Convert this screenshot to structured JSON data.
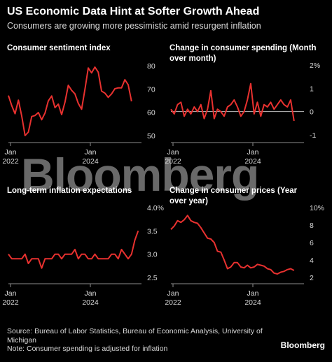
{
  "title": "US Economic Data Hint at Softer Growth Ahead",
  "subtitle": "Consumers are growing more pessimistic amid resurgent inflation",
  "watermark": "Bloomberg",
  "footer": {
    "source": "Source: Bureau of Labor Statistics, Bureau of Economic Analysis, University of Michigan",
    "note": "Note: Consumer spending is adjusted for inflation",
    "brand": "Bloomberg"
  },
  "colors": {
    "line": "#e8312f",
    "axis": "#8c8c8c",
    "background": "#000000",
    "text": "#ffffff"
  },
  "chart_data": [
    {
      "type": "line",
      "title": "Consumer sentiment index",
      "x_labels": [
        {
          "value": 0,
          "line1": "Jan",
          "line2": "2022"
        },
        {
          "value": 24,
          "line1": "Jan",
          "line2": "2024"
        }
      ],
      "xlim": [
        0,
        40
      ],
      "ylim": [
        50,
        80
      ],
      "yticks": [
        {
          "value": 50,
          "label": "50"
        },
        {
          "value": 60,
          "label": "60"
        },
        {
          "value": 70,
          "label": "70"
        },
        {
          "value": 80,
          "label": "80"
        }
      ],
      "series": [
        {
          "values": [
            67.2,
            62.8,
            59.4,
            65.2,
            58.4,
            50.0,
            51.5,
            58.2,
            58.6,
            59.9,
            56.8,
            59.7,
            64.9,
            67.0,
            62.0,
            63.5,
            59.0,
            64.4,
            71.6,
            69.4,
            67.9,
            63.8,
            61.3,
            69.7,
            79.0,
            76.9,
            79.4,
            77.2,
            69.1,
            68.2,
            66.4,
            67.9,
            70.1,
            70.5,
            70.5,
            74.0,
            71.8,
            64.7
          ]
        }
      ]
    },
    {
      "type": "line",
      "title": "Change in consumer spending (Month over month)",
      "x_labels": [
        {
          "value": 0,
          "line1": "Jan",
          "line2": "2022"
        },
        {
          "value": 24,
          "line1": "Jan",
          "line2": "2024"
        }
      ],
      "xlim": [
        0,
        40
      ],
      "ylim": [
        -1,
        2
      ],
      "zero_line": 0,
      "yticks": [
        {
          "value": -1,
          "label": "-1"
        },
        {
          "value": 0,
          "label": "0"
        },
        {
          "value": 1,
          "label": "1"
        },
        {
          "value": 2,
          "label": "2%"
        }
      ],
      "series": [
        {
          "values": [
            0.1,
            -0.1,
            0.3,
            0.4,
            -0.2,
            0.1,
            -0.1,
            0.2,
            0.0,
            0.3,
            -0.3,
            0.1,
            0.9,
            -0.3,
            0.1,
            0.0,
            -0.2,
            0.2,
            0.3,
            0.5,
            0.2,
            -0.2,
            0.0,
            0.5,
            1.2,
            -0.1,
            0.4,
            -0.2,
            0.3,
            0.2,
            0.4,
            0.1,
            0.3,
            0.5,
            0.3,
            0.2,
            0.5,
            -0.4
          ]
        }
      ]
    },
    {
      "type": "line",
      "title": "Long-term inflation expectations",
      "x_labels": [
        {
          "value": 0,
          "line1": "Jan",
          "line2": "2022"
        },
        {
          "value": 24,
          "line1": "Jan",
          "line2": "2024"
        }
      ],
      "xlim": [
        0,
        40
      ],
      "ylim": [
        2.5,
        4.0
      ],
      "yticks": [
        {
          "value": 2.5,
          "label": "2.5"
        },
        {
          "value": 3.0,
          "label": "3.0"
        },
        {
          "value": 3.5,
          "label": "3.5"
        },
        {
          "value": 4.0,
          "label": "4.0%"
        }
      ],
      "series": [
        {
          "values": [
            3.0,
            2.9,
            2.9,
            2.9,
            2.9,
            3.0,
            2.8,
            2.9,
            2.9,
            2.9,
            2.7,
            2.9,
            2.9,
            2.9,
            3.0,
            3.0,
            2.9,
            3.0,
            3.0,
            3.0,
            3.1,
            2.9,
            3.0,
            3.0,
            2.9,
            2.9,
            3.0,
            2.9,
            2.9,
            2.9,
            2.9,
            3.0,
            3.0,
            2.9,
            3.1,
            3.0,
            2.9,
            3.0,
            3.3,
            3.5
          ]
        }
      ]
    },
    {
      "type": "line",
      "title": "Change in consumer prices (Year over year)",
      "x_labels": [
        {
          "value": 0,
          "line1": "Jan",
          "line2": "2022"
        },
        {
          "value": 24,
          "line1": "Jan",
          "line2": "2024"
        }
      ],
      "xlim": [
        0,
        40
      ],
      "ylim": [
        2,
        10
      ],
      "yticks": [
        {
          "value": 2,
          "label": "2"
        },
        {
          "value": 4,
          "label": "4"
        },
        {
          "value": 6,
          "label": "6"
        },
        {
          "value": 8,
          "label": "8"
        },
        {
          "value": 10,
          "label": "10%"
        }
      ],
      "series": [
        {
          "values": [
            7.5,
            7.9,
            8.5,
            8.3,
            8.6,
            9.1,
            8.5,
            8.3,
            8.2,
            7.7,
            7.1,
            6.5,
            6.4,
            6.0,
            5.0,
            4.9,
            4.0,
            3.0,
            3.2,
            3.7,
            3.7,
            3.2,
            3.1,
            3.4,
            3.1,
            3.2,
            3.5,
            3.4,
            3.3,
            3.0,
            2.9,
            2.5,
            2.4,
            2.6,
            2.7,
            2.9,
            3.0,
            2.8
          ]
        }
      ]
    }
  ]
}
